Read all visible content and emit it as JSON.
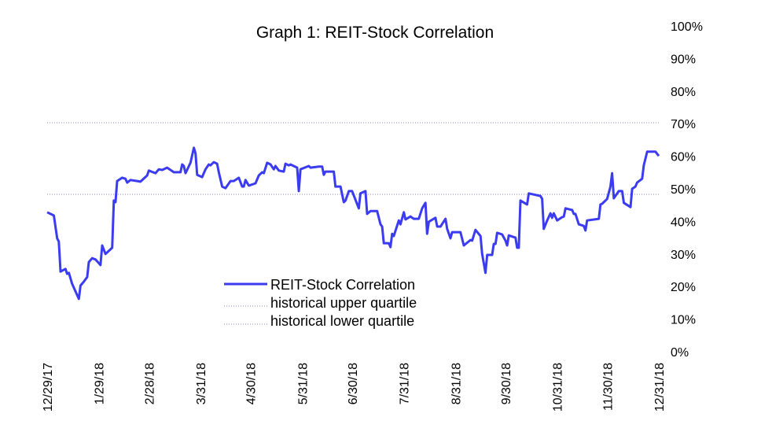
{
  "chart_data": {
    "type": "line",
    "title": "Graph 1: REIT-Stock Correlation",
    "xlabel": "",
    "ylabel": "",
    "ylim": [
      0,
      100
    ],
    "xlim": [
      "2017-12-29",
      "2018-12-31"
    ],
    "y_ticks": [
      "0%",
      "10%",
      "20%",
      "30%",
      "40%",
      "50%",
      "60%",
      "70%",
      "80%",
      "90%",
      "100%"
    ],
    "y_axis_side": "right",
    "x_ticks": [
      {
        "date": "2017-12-29",
        "label": "12/29/17"
      },
      {
        "date": "2018-01-29",
        "label": "1/29/18"
      },
      {
        "date": "2018-02-28",
        "label": "2/28/18"
      },
      {
        "date": "2018-03-31",
        "label": "3/31/18"
      },
      {
        "date": "2018-04-30",
        "label": "4/30/18"
      },
      {
        "date": "2018-05-31",
        "label": "5/31/18"
      },
      {
        "date": "2018-06-30",
        "label": "6/30/18"
      },
      {
        "date": "2018-07-31",
        "label": "7/31/18"
      },
      {
        "date": "2018-08-31",
        "label": "8/31/18"
      },
      {
        "date": "2018-09-30",
        "label": "9/30/18"
      },
      {
        "date": "2018-10-31",
        "label": "10/31/18"
      },
      {
        "date": "2018-11-30",
        "label": "11/30/18"
      },
      {
        "date": "2018-12-31",
        "label": "12/31/18"
      }
    ],
    "grid": false,
    "legend_position": "bottom-center",
    "series": [
      {
        "name": "REIT-Stock Correlation",
        "color": "#3b3bf0",
        "style": "solid",
        "x": [
          "2017-12-29",
          "2018-01-02",
          "2018-01-04",
          "2018-01-05",
          "2018-01-06",
          "2018-01-09",
          "2018-01-10",
          "2018-01-11",
          "2018-01-13",
          "2018-01-17",
          "2018-01-18",
          "2018-01-20",
          "2018-01-22",
          "2018-01-23",
          "2018-01-25",
          "2018-01-27",
          "2018-01-30",
          "2018-01-31",
          "2018-02-02",
          "2018-02-06",
          "2018-02-07",
          "2018-02-08",
          "2018-02-09",
          "2018-02-12",
          "2018-02-14",
          "2018-02-15",
          "2018-02-17",
          "2018-02-21",
          "2018-02-23",
          "2018-02-27",
          "2018-02-28",
          "2018-03-04",
          "2018-03-06",
          "2018-03-08",
          "2018-03-11",
          "2018-03-15",
          "2018-03-19",
          "2018-03-20",
          "2018-03-21",
          "2018-03-22",
          "2018-03-25",
          "2018-03-27",
          "2018-03-28",
          "2018-03-29",
          "2018-04-01",
          "2018-04-03",
          "2018-04-05",
          "2018-04-06",
          "2018-04-08",
          "2018-04-10",
          "2018-04-11",
          "2018-04-13",
          "2018-04-15",
          "2018-04-18",
          "2018-04-20",
          "2018-04-23",
          "2018-04-25",
          "2018-04-26",
          "2018-04-27",
          "2018-04-29",
          "2018-05-03",
          "2018-05-05",
          "2018-05-07",
          "2018-05-08",
          "2018-05-10",
          "2018-05-12",
          "2018-05-14",
          "2018-05-15",
          "2018-05-17",
          "2018-05-20",
          "2018-05-21",
          "2018-05-23",
          "2018-05-24",
          "2018-05-28",
          "2018-05-29",
          "2018-05-30",
          "2018-06-04",
          "2018-06-05",
          "2018-06-10",
          "2018-06-12",
          "2018-06-13",
          "2018-06-14",
          "2018-06-19",
          "2018-06-20",
          "2018-06-23",
          "2018-06-25",
          "2018-06-26",
          "2018-06-28",
          "2018-06-30",
          "2018-07-04",
          "2018-07-05",
          "2018-07-08",
          "2018-07-09",
          "2018-07-11",
          "2018-07-15",
          "2018-07-17",
          "2018-07-18",
          "2018-07-19",
          "2018-07-22",
          "2018-07-23",
          "2018-07-24",
          "2018-07-25",
          "2018-07-28",
          "2018-07-29",
          "2018-07-31",
          "2018-08-01",
          "2018-08-04",
          "2018-08-06",
          "2018-08-09",
          "2018-08-11",
          "2018-08-13",
          "2018-08-14",
          "2018-08-15",
          "2018-08-19",
          "2018-08-20",
          "2018-08-22",
          "2018-08-25",
          "2018-08-26",
          "2018-08-28",
          "2018-08-29",
          "2018-09-03",
          "2018-09-05",
          "2018-09-09",
          "2018-09-10",
          "2018-09-12",
          "2018-09-15",
          "2018-09-16",
          "2018-09-18",
          "2018-09-19",
          "2018-09-22",
          "2018-09-23",
          "2018-09-24",
          "2018-09-25",
          "2018-09-28",
          "2018-09-30",
          "2018-10-01",
          "2018-10-02",
          "2018-10-06",
          "2018-10-07",
          "2018-10-08",
          "2018-10-09",
          "2018-10-13",
          "2018-10-14",
          "2018-10-21",
          "2018-10-22",
          "2018-10-23",
          "2018-10-25",
          "2018-10-27",
          "2018-10-28",
          "2018-10-29",
          "2018-10-31",
          "2018-11-03",
          "2018-11-04",
          "2018-11-05",
          "2018-11-09",
          "2018-11-10",
          "2018-11-11",
          "2018-11-13",
          "2018-11-16",
          "2018-11-17",
          "2018-11-18",
          "2018-11-25",
          "2018-11-26",
          "2018-11-27",
          "2018-11-30",
          "2018-12-02",
          "2018-12-03",
          "2018-12-04",
          "2018-12-07",
          "2018-12-09",
          "2018-12-10",
          "2018-12-14",
          "2018-12-15",
          "2018-12-17",
          "2018-12-18",
          "2018-12-21",
          "2018-12-22",
          "2018-12-24",
          "2018-12-29",
          "2018-12-31"
        ],
        "values": [
          42.8,
          41.8,
          34.8,
          33.8,
          24.6,
          25.4,
          23.9,
          24.2,
          20.8,
          16.2,
          20.3,
          21.5,
          22.9,
          27.5,
          28.7,
          28.3,
          26.6,
          32.6,
          30.0,
          31.9,
          46.4,
          45.9,
          52.4,
          53.4,
          53.1,
          51.9,
          52.7,
          52.4,
          52.2,
          54.1,
          55.6,
          54.8,
          56.0,
          55.8,
          56.5,
          55.1,
          55.1,
          57.5,
          57.0,
          54.8,
          58.0,
          62.6,
          60.9,
          54.3,
          53.6,
          56.0,
          57.5,
          57.2,
          58.2,
          57.7,
          55.1,
          50.7,
          50.2,
          52.4,
          52.4,
          53.4,
          50.7,
          50.7,
          52.7,
          51.0,
          51.7,
          54.1,
          55.1,
          54.8,
          58.0,
          57.5,
          56.0,
          57.0,
          55.6,
          55.3,
          57.7,
          57.2,
          57.5,
          56.5,
          49.3,
          56.0,
          57.0,
          56.5,
          56.8,
          56.8,
          54.3,
          55.3,
          55.3,
          50.7,
          50.7,
          45.9,
          46.4,
          49.3,
          49.3,
          44.0,
          48.6,
          49.3,
          42.3,
          43.2,
          43.2,
          39.1,
          38.4,
          33.3,
          33.3,
          32.1,
          36.2,
          35.5,
          40.3,
          39.1,
          42.8,
          40.6,
          41.5,
          40.8,
          40.8,
          44.0,
          45.7,
          36.2,
          39.9,
          41.1,
          38.4,
          38.4,
          40.8,
          37.7,
          34.8,
          36.7,
          36.7,
          32.6,
          34.3,
          34.1,
          37.4,
          35.5,
          30.0,
          24.2,
          29.7,
          29.7,
          33.1,
          33.1,
          36.5,
          36.0,
          34.1,
          32.6,
          35.7,
          35.0,
          31.9,
          31.9,
          46.4,
          45.2,
          48.6,
          47.8,
          46.9,
          37.7,
          40.3,
          42.5,
          41.1,
          42.5,
          40.3,
          41.3,
          41.5,
          44.0,
          43.5,
          42.3,
          42.3,
          39.1,
          38.6,
          37.2,
          40.3,
          40.8,
          45.2,
          45.4,
          46.9,
          50.7,
          54.8,
          47.1,
          49.3,
          49.3,
          45.7,
          44.4,
          50.0,
          50.7,
          51.9,
          53.1,
          57.2,
          61.4,
          61.4,
          60.1
        ]
      },
      {
        "name": "historical upper quartile",
        "color": "#8888bb",
        "style": "dotted",
        "value": 70.3
      },
      {
        "name": "historical lower quartile",
        "color": "#8888bb",
        "style": "dotted",
        "value": 48.3
      }
    ]
  }
}
